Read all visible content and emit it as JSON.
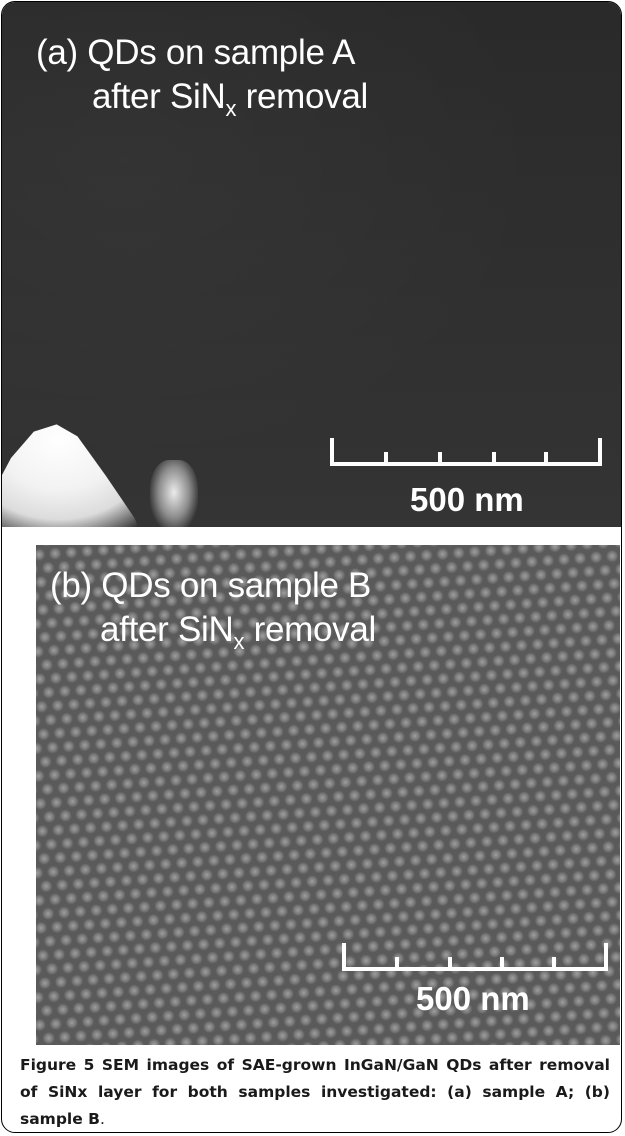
{
  "panel_a": {
    "label_line1": "(a) QDs on sample A",
    "label_line2_prefix": "after SiN",
    "label_line2_sub": "x",
    "label_line2_suffix": " removal",
    "scale_label": "500 nm"
  },
  "panel_b": {
    "label_line1": "(b) QDs on sample B",
    "label_line2_prefix": "after SiN",
    "label_line2_sub": "x",
    "label_line2_suffix": " removal",
    "scale_label": "500 nm"
  },
  "caption": {
    "figure_label": "Figure 5",
    "text": " SEM images of SAE-grown InGaN/GaN QDs after removal of SiNx layer for both samples investigated: (a) sample A; (b) sample B",
    "end": "."
  },
  "colors": {
    "panel_a_background": "#2f2f2f",
    "panel_b_background": "#5a5a5a",
    "label_text": "#ffffff",
    "frame_border": "#000000"
  }
}
